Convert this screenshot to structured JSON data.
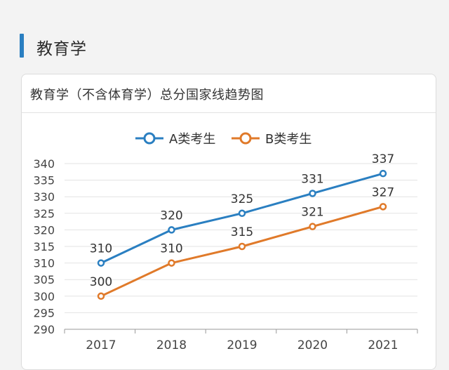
{
  "section": {
    "title": "教育学"
  },
  "card": {
    "title": "教育学（不含体育学）总分国家线趋势图"
  },
  "chart_data": {
    "type": "line",
    "title": "教育学（不含体育学）总分国家线趋势图",
    "categories": [
      "2017",
      "2018",
      "2019",
      "2020",
      "2021"
    ],
    "ylim": [
      290,
      340
    ],
    "yticks": [
      290,
      295,
      300,
      305,
      310,
      315,
      320,
      325,
      330,
      335,
      340
    ],
    "grid": true,
    "legend_position": "top-center",
    "series": [
      {
        "name": "A类考生",
        "color": "#2a7fc1",
        "values": [
          310,
          320,
          325,
          331,
          337
        ]
      },
      {
        "name": "B类考生",
        "color": "#e07a2a",
        "values": [
          300,
          310,
          315,
          321,
          327
        ]
      }
    ]
  }
}
